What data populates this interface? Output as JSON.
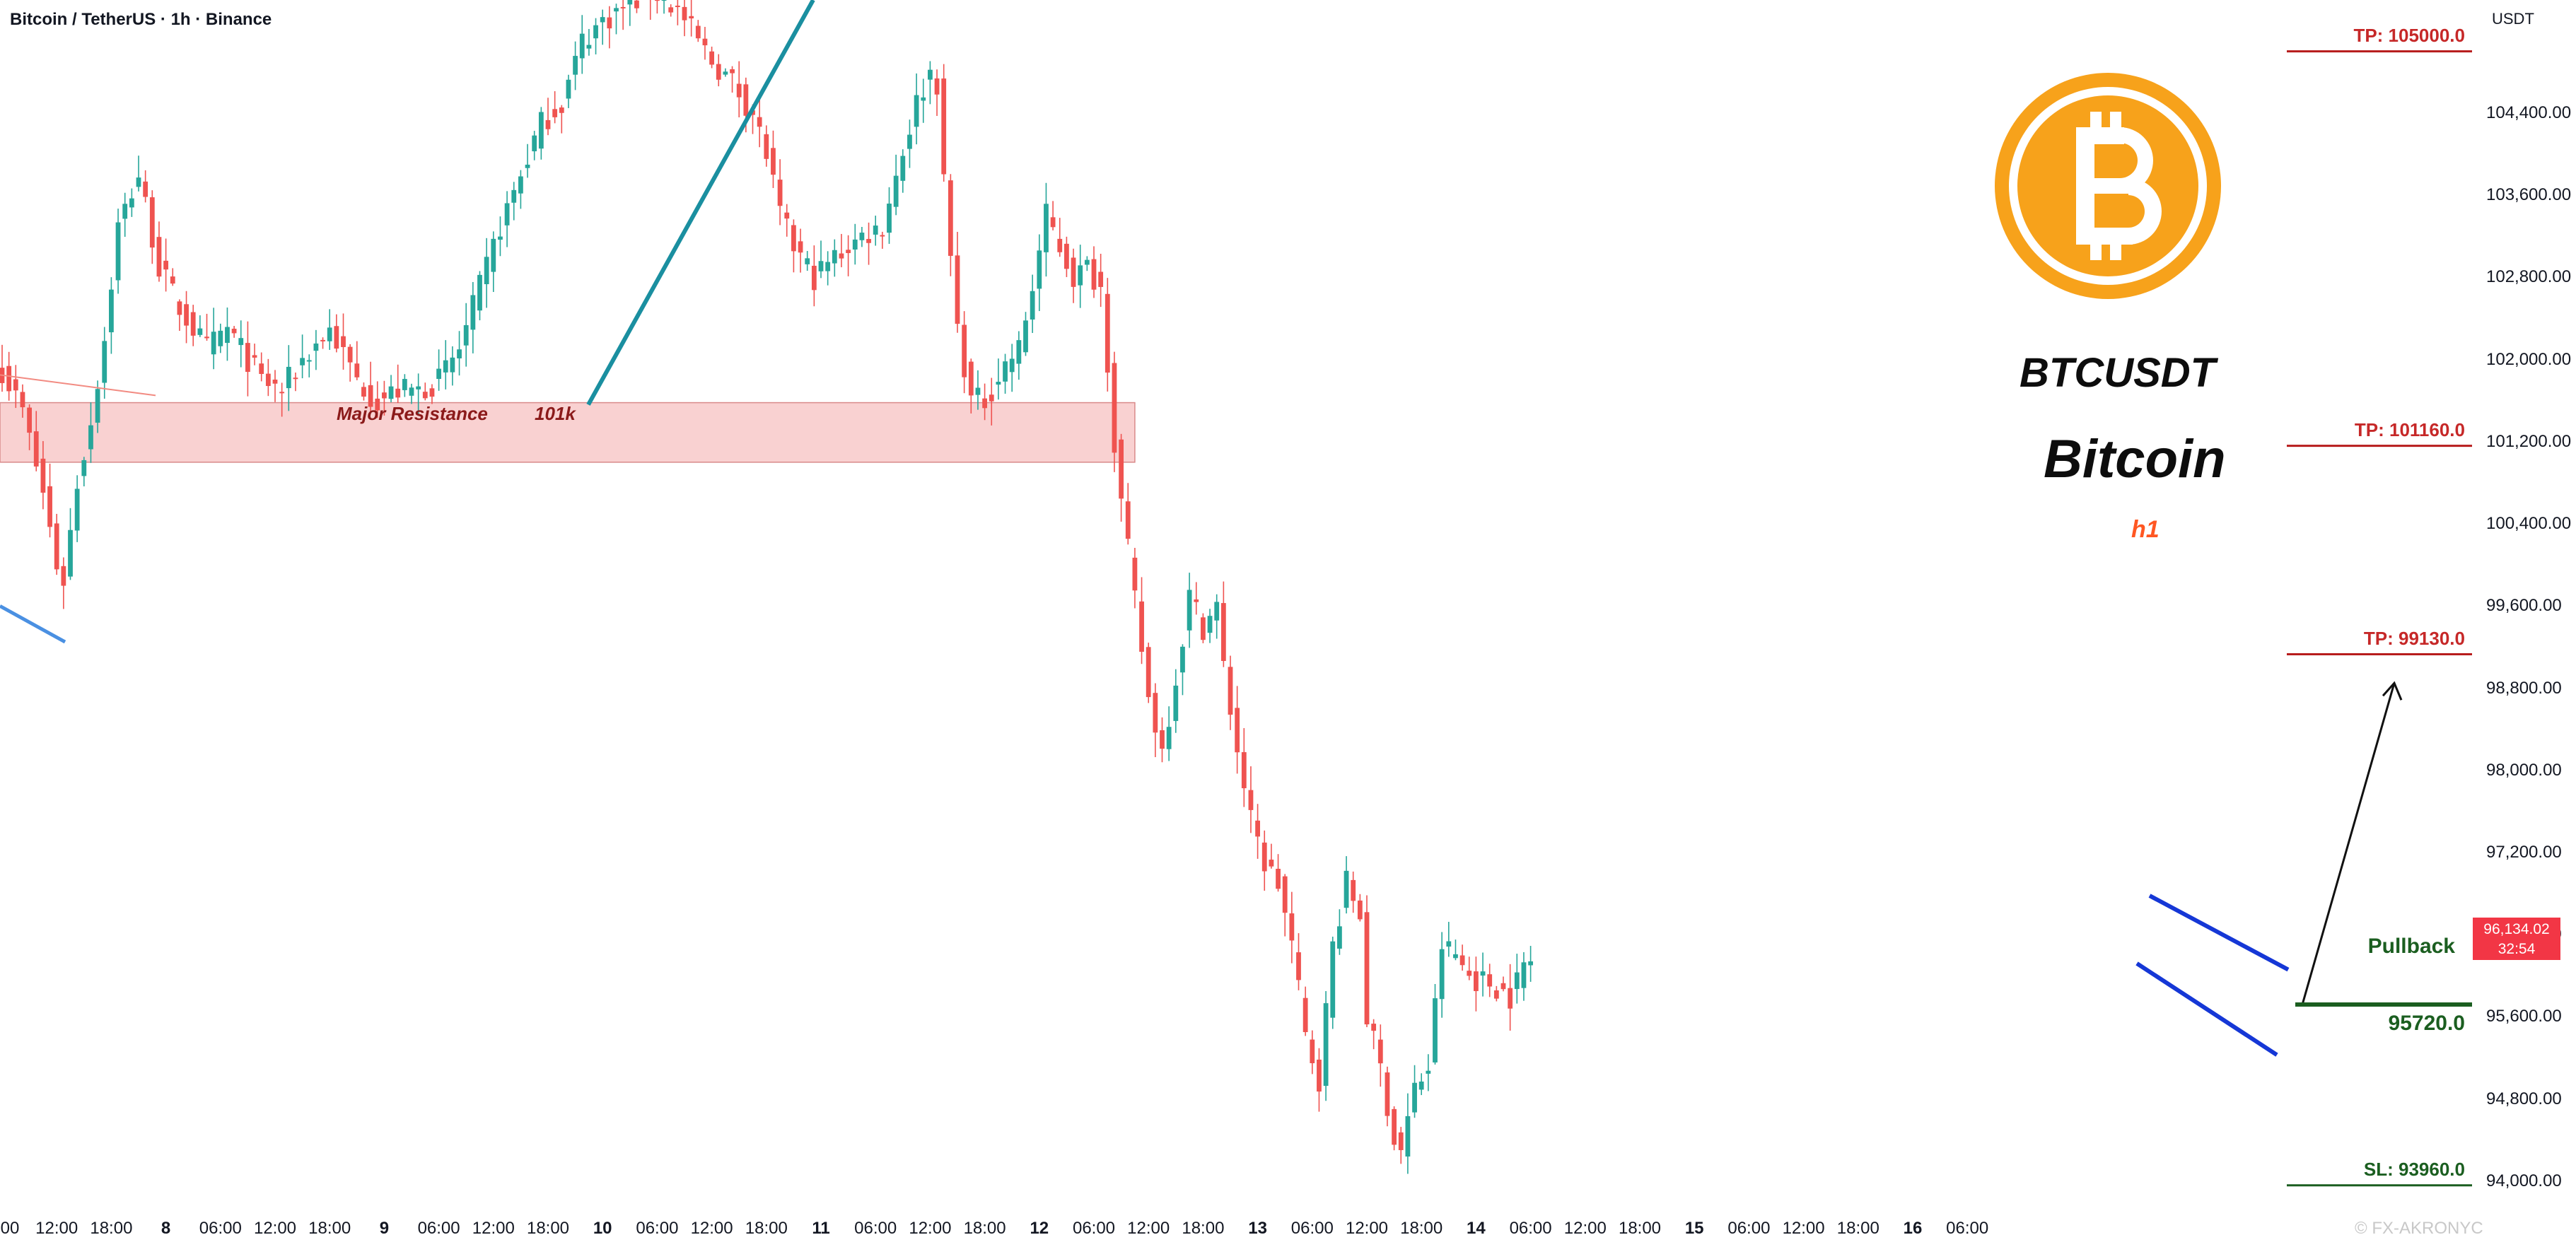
{
  "header": {
    "title": "Bitcoin / TetherUS · 1h · Binance"
  },
  "annotations": {
    "symbol": "BTCUSDT",
    "name": "Bitcoin",
    "timeframe": "h1",
    "resistance_label": "Major Resistance",
    "resistance_value_label": "101k",
    "pullback_label": "Pullback",
    "pullback_value_label": "95720.0",
    "watermark": "© FX-AKRONYC",
    "logo": "bitcoin-logo-icon"
  },
  "colors": {
    "bull": "#26a69a",
    "bear": "#ef5350",
    "resistance_fill": "#f8c5c5",
    "tp_line": "#b71c1c",
    "sl_line": "#1b5e20",
    "channel": "#1537d6",
    "trendline": "#1a8fa0",
    "logo": "#f7a21b"
  },
  "price_tag": {
    "price": "96,134.02",
    "countdown": "32:54"
  },
  "chart_data": {
    "type": "candlestick",
    "title": "Bitcoin / TetherUS · 1h · Binance",
    "y_unit": "USDT",
    "ylim": [
      93800,
      105500
    ],
    "y_ticks": [
      94000,
      94800,
      95600,
      96400,
      97200,
      98000,
      98800,
      99600,
      100400,
      101200,
      102000,
      102800,
      103600,
      104400
    ],
    "y_tick_labels": [
      "94,000.00",
      "94,800.00",
      "95,600.00",
      "96,400.00",
      "97,200.00",
      "98,000.00",
      "98,800.00",
      "99,600.00",
      "100,400.00",
      "101,200.00",
      "102,000.00",
      "102,800.00",
      "103,600.00",
      "104,400.00"
    ],
    "x_ticks": [
      {
        "label": "00",
        "bold": false,
        "bar": 0
      },
      {
        "label": "12:00",
        "bold": false,
        "bar": 8
      },
      {
        "label": "18:00",
        "bold": false,
        "bar": 16
      },
      {
        "label": "8",
        "bold": true,
        "bar": 24
      },
      {
        "label": "06:00",
        "bold": false,
        "bar": 32
      },
      {
        "label": "12:00",
        "bold": false,
        "bar": 40
      },
      {
        "label": "18:00",
        "bold": false,
        "bar": 48
      },
      {
        "label": "9",
        "bold": true,
        "bar": 56
      },
      {
        "label": "06:00",
        "bold": false,
        "bar": 64
      },
      {
        "label": "12:00",
        "bold": false,
        "bar": 72
      },
      {
        "label": "18:00",
        "bold": false,
        "bar": 80
      },
      {
        "label": "10",
        "bold": true,
        "bar": 88
      },
      {
        "label": "06:00",
        "bold": false,
        "bar": 96
      },
      {
        "label": "12:00",
        "bold": false,
        "bar": 104
      },
      {
        "label": "18:00",
        "bold": false,
        "bar": 112
      },
      {
        "label": "11",
        "bold": true,
        "bar": 120
      },
      {
        "label": "06:00",
        "bold": false,
        "bar": 128
      },
      {
        "label": "12:00",
        "bold": false,
        "bar": 136
      },
      {
        "label": "18:00",
        "bold": false,
        "bar": 144
      },
      {
        "label": "12",
        "bold": true,
        "bar": 152
      },
      {
        "label": "06:00",
        "bold": false,
        "bar": 160
      },
      {
        "label": "12:00",
        "bold": false,
        "bar": 168
      },
      {
        "label": "18:00",
        "bold": false,
        "bar": 176
      },
      {
        "label": "13",
        "bold": true,
        "bar": 184
      },
      {
        "label": "06:00",
        "bold": false,
        "bar": 192
      },
      {
        "label": "12:00",
        "bold": false,
        "bar": 200
      },
      {
        "label": "18:00",
        "bold": false,
        "bar": 208
      },
      {
        "label": "14",
        "bold": true,
        "bar": 216
      },
      {
        "label": "06:00",
        "bold": false,
        "bar": 224
      },
      {
        "label": "12:00",
        "bold": false,
        "bar": 232
      },
      {
        "label": "18:00",
        "bold": false,
        "bar": 240
      },
      {
        "label": "15",
        "bold": true,
        "bar": 248
      },
      {
        "label": "06:00",
        "bold": false,
        "bar": 256
      },
      {
        "label": "12:00",
        "bold": false,
        "bar": 264
      },
      {
        "label": "18:00",
        "bold": false,
        "bar": 272
      },
      {
        "label": "16",
        "bold": true,
        "bar": 280
      },
      {
        "label": "06:00",
        "bold": false,
        "bar": 288
      }
    ],
    "resistance_zone": {
      "low": 101000,
      "high": 101580
    },
    "levels": [
      {
        "kind": "tp",
        "label": "TP: 105000.0",
        "value": 105000
      },
      {
        "kind": "tp",
        "label": "TP: 101160.0",
        "value": 101160
      },
      {
        "kind": "tp",
        "label": "TP: 99130.0",
        "value": 99130
      },
      {
        "kind": "pullback",
        "label": "95720.0",
        "value": 95720
      },
      {
        "kind": "sl",
        "label": "SL: 93960.0",
        "value": 93960
      }
    ],
    "close_anchors": [
      [
        0,
        101900
      ],
      [
        3,
        101500
      ],
      [
        6,
        100700
      ],
      [
        8,
        100000
      ],
      [
        9,
        99850
      ],
      [
        11,
        100800
      ],
      [
        13,
        101400
      ],
      [
        15,
        102200
      ],
      [
        17,
        103300
      ],
      [
        20,
        103800
      ],
      [
        23,
        102900
      ],
      [
        26,
        102500
      ],
      [
        30,
        102100
      ],
      [
        33,
        102300
      ],
      [
        38,
        101800
      ],
      [
        41,
        101700
      ],
      [
        44,
        102000
      ],
      [
        48,
        102300
      ],
      [
        52,
        101800
      ],
      [
        55,
        101600
      ],
      [
        58,
        101700
      ],
      [
        61,
        101700
      ],
      [
        64,
        101800
      ],
      [
        67,
        102100
      ],
      [
        70,
        102700
      ],
      [
        73,
        103300
      ],
      [
        76,
        103800
      ],
      [
        79,
        104300
      ],
      [
        82,
        104500
      ],
      [
        85,
        105100
      ],
      [
        88,
        105300
      ],
      [
        93,
        105500
      ],
      [
        95,
        105600
      ],
      [
        97,
        105500
      ],
      [
        99,
        105400
      ],
      [
        101,
        105200
      ],
      [
        104,
        104900
      ],
      [
        107,
        104700
      ],
      [
        110,
        104400
      ],
      [
        112,
        104000
      ],
      [
        114,
        103400
      ],
      [
        116,
        103100
      ],
      [
        119,
        102800
      ],
      [
        122,
        103000
      ],
      [
        126,
        103200
      ],
      [
        129,
        103300
      ],
      [
        131,
        103800
      ],
      [
        134,
        104500
      ],
      [
        136,
        104800
      ],
      [
        137,
        104700
      ],
      [
        138,
        103700
      ],
      [
        140,
        102300
      ],
      [
        142,
        101600
      ],
      [
        144,
        101600
      ],
      [
        147,
        101950
      ],
      [
        149,
        102100
      ],
      [
        151,
        102700
      ],
      [
        153,
        103400
      ],
      [
        155,
        103100
      ],
      [
        157,
        102800
      ],
      [
        159,
        102900
      ],
      [
        161,
        102700
      ],
      [
        162,
        102000
      ],
      [
        163,
        101200
      ],
      [
        164,
        100600
      ],
      [
        166,
        99650
      ],
      [
        168,
        98700
      ],
      [
        170,
        98200
      ],
      [
        172,
        98900
      ],
      [
        174,
        99700
      ],
      [
        176,
        99400
      ],
      [
        178,
        99600
      ],
      [
        179,
        99000
      ],
      [
        181,
        98200
      ],
      [
        183,
        97500
      ],
      [
        185,
        97100
      ],
      [
        187,
        96900
      ],
      [
        189,
        96300
      ],
      [
        191,
        95400
      ],
      [
        193,
        95000
      ],
      [
        195,
        96300
      ],
      [
        197,
        96900
      ],
      [
        199,
        96600
      ],
      [
        200,
        95600
      ],
      [
        202,
        95100
      ],
      [
        204,
        94400
      ],
      [
        205,
        94300
      ],
      [
        207,
        94900
      ],
      [
        209,
        95100
      ],
      [
        210,
        95700
      ],
      [
        211,
        96300
      ],
      [
        213,
        96200
      ],
      [
        215,
        96000
      ],
      [
        217,
        95950
      ],
      [
        219,
        95900
      ],
      [
        221,
        95800
      ],
      [
        223,
        96100
      ],
      [
        224,
        96134
      ]
    ]
  }
}
